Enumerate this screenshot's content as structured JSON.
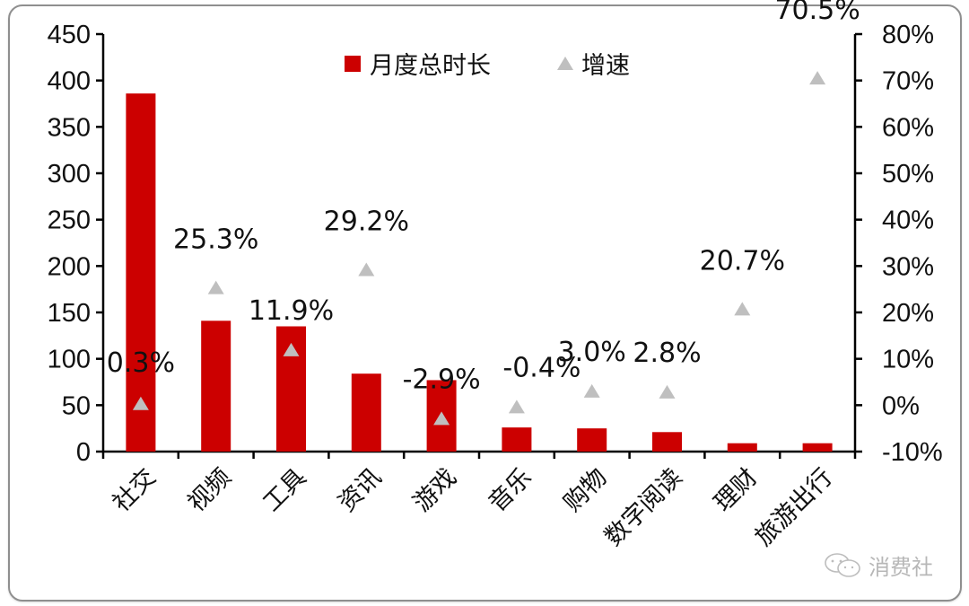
{
  "chart_data": {
    "type": "bar",
    "title": "",
    "xlabel": "",
    "ylabel": "",
    "categories": [
      "社交",
      "视频",
      "工具",
      "资讯",
      "游戏",
      "音乐",
      "购物",
      "数字阅读",
      "理财",
      "旅游出行"
    ],
    "series": [
      {
        "name": "月度总时长",
        "type": "bar",
        "axis": "left",
        "color": "#cc0000",
        "values": [
          386,
          141,
          135,
          84,
          77,
          26,
          25,
          21,
          9,
          9
        ]
      },
      {
        "name": "增速",
        "type": "scatter",
        "marker": "triangle",
        "axis": "right",
        "color": "#bfbfbf",
        "values": [
          0.3,
          25.3,
          11.9,
          29.2,
          -2.9,
          -0.4,
          3.0,
          2.8,
          20.7,
          70.5
        ],
        "labels": [
          "0.3%",
          "25.3%",
          "11.9%",
          "29.2%",
          "-2.9%",
          "-0.4%",
          "3.0%",
          "2.8%",
          "20.7%",
          "70.5%"
        ]
      }
    ],
    "y_left": {
      "ylim": [
        0,
        450
      ],
      "ticks": [
        "0",
        "50",
        "100",
        "150",
        "200",
        "250",
        "300",
        "350",
        "400",
        "450"
      ]
    },
    "y_right": {
      "ylim": [
        -10,
        80
      ],
      "ticks": [
        "-10%",
        "0%",
        "10%",
        "20%",
        "30%",
        "40%",
        "50%",
        "60%",
        "70%",
        "80%"
      ]
    },
    "grid": false,
    "legend": {
      "position": "top-center",
      "entries": [
        "月度总时长",
        "增速"
      ]
    }
  },
  "watermark": {
    "text": "消费社"
  }
}
